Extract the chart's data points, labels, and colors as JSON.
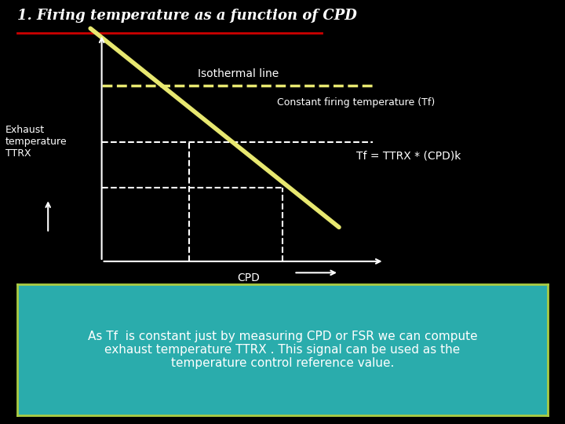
{
  "title": "1. Firing temperature as a function of CPD",
  "title_color": "#FFFFFF",
  "title_underline_color": "#CC0000",
  "background_top": "#000000",
  "bottom_box_color": "#2AACAC",
  "bottom_box_border": "#AACC44",
  "isothermal_label": "Isothermal line",
  "constant_firing_label": "Constant firing temperature (Tf)",
  "exhaust_label": "Exhaust\ntemperature\nTTRX",
  "cpd_label": "CPD",
  "formula_label": "Tf = TTRX * (CPD)k",
  "bottom_text_line1": "As Tf  is constant just by measuring CPD or FSR we can compute",
  "bottom_text_line2": "exhaust temperature TTRX . This signal can be used as the",
  "bottom_text_line3": "temperature control reference value.",
  "axis_color": "#FFFFFF",
  "dashed_color": "#FFFFFF",
  "graph_text_color": "#FFFFFF",
  "bottom_text_color": "#FFFFFF"
}
